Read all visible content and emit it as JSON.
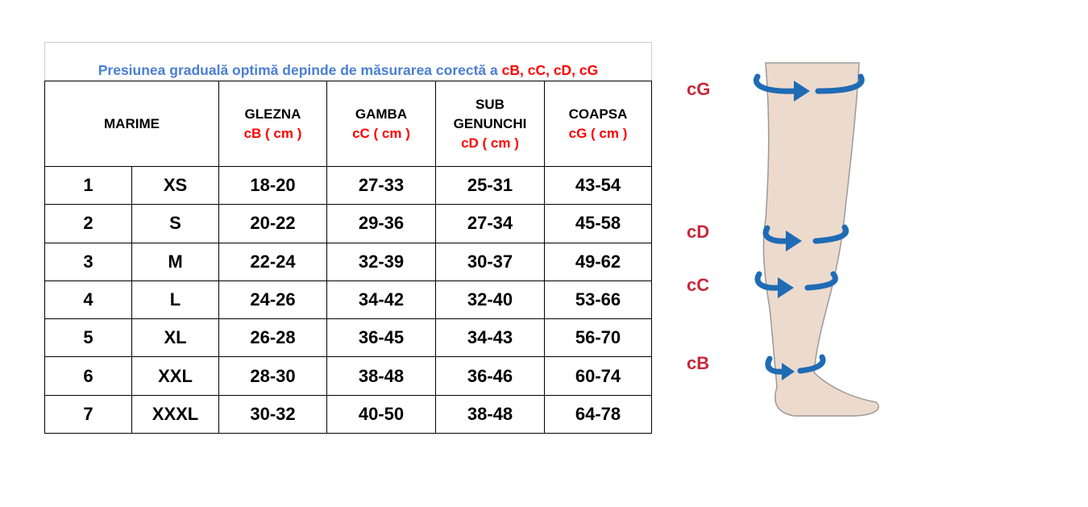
{
  "table": {
    "caption": {
      "text": "Presiunea graduală optimă depinde de măsurarea corectă a ",
      "highlight": "cB, cC, cD, cG"
    },
    "header": [
      {
        "title": "MARIME"
      },
      {
        "title": "GLEZNA",
        "unit": "cB ( cm )"
      },
      {
        "title": "GAMBA",
        "unit": "cC ( cm )"
      },
      {
        "title": "SUB GENUNCHI",
        "unit": "cD ( cm )"
      },
      {
        "title": "COAPSA",
        "unit": "cG ( cm )"
      }
    ],
    "rows": [
      [
        "1",
        "XS",
        "18-20",
        "27-33",
        "25-31",
        "43-54"
      ],
      [
        "2",
        "S",
        "20-22",
        "29-36",
        "27-34",
        "45-58"
      ],
      [
        "3",
        "M",
        "22-24",
        "32-39",
        "30-37",
        "49-62"
      ],
      [
        "4",
        "L",
        "24-26",
        "34-42",
        "32-40",
        "53-66"
      ],
      [
        "5",
        "XL",
        "26-28",
        "36-45",
        "34-43",
        "56-70"
      ],
      [
        "6",
        "XXL",
        "28-30",
        "38-48",
        "36-46",
        "60-74"
      ],
      [
        "7",
        "XXXL",
        "30-32",
        "40-50",
        "38-48",
        "64-78"
      ]
    ]
  },
  "leg": {
    "labels": [
      "cG",
      "cD",
      "cC",
      "cB"
    ]
  }
}
